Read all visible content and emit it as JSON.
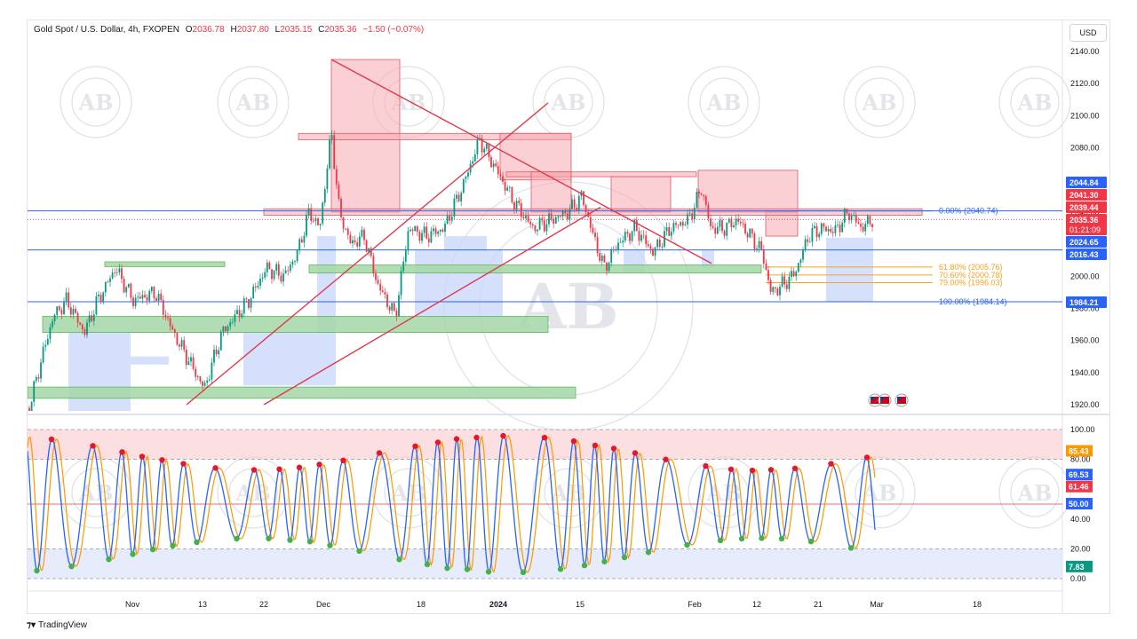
{
  "header": {
    "symbol": "Gold Spot / U.S. Dollar, 4h, FXOPEN",
    "open_label": "O",
    "open": "2036.78",
    "high_label": "H",
    "high": "2037.80",
    "low_label": "L",
    "low": "2035.15",
    "close_label": "C",
    "close": "2035.36",
    "change": "−1.50 (−0.07%)",
    "currency_button": "USD"
  },
  "watermark": {
    "text": "AB"
  },
  "branding": {
    "name": "TradingView"
  },
  "colors": {
    "up": "#089981",
    "down": "#f23645",
    "price_line": "#2962ff",
    "stoch_k": "#2962ff",
    "stoch_d": "#ff9800",
    "supply_zone": "#f7a9b0",
    "demand_zone": "#a5d6a7",
    "box_blue": "#c7d5fb"
  },
  "chart_data": [
    {
      "type": "line",
      "subtype": "candlestick",
      "title": "Gold Spot / U.S. Dollar, 4h, FXOPEN",
      "ylim": [
        1913,
        2147
      ],
      "y_ticks": [
        1920,
        1940,
        1960,
        1980,
        2000,
        2020,
        2040,
        2060,
        2080,
        2100,
        2120,
        2140
      ],
      "x_tick_labels": [
        "Nov",
        "13",
        "22",
        "Dec",
        "18",
        "2024",
        "15",
        "Feb",
        "12",
        "21",
        "Mar",
        "18"
      ],
      "series": [
        {
          "name": "close",
          "x": [
            "Nov",
            "13",
            "22",
            "Dec",
            "18",
            "2024",
            "15",
            "Feb",
            "12",
            "21"
          ],
          "values": [
            1985,
            1950,
            1995,
            2065,
            2035,
            2063,
            2028,
            2042,
            1992,
            2033
          ]
        }
      ],
      "price_labels": [
        {
          "value": "2044.84",
          "color": "#2962ff"
        },
        {
          "value": "2041.30",
          "color": "#f23645"
        },
        {
          "value": "2039.44",
          "color": "#f23645"
        },
        {
          "value": "2035.36",
          "color": "#f23645",
          "countdown": "01:21:09"
        },
        {
          "value": "2024.65",
          "color": "#2962ff"
        },
        {
          "value": "2016.43",
          "color": "#2962ff"
        },
        {
          "value": "1984.21",
          "color": "#2962ff"
        }
      ],
      "fibonacci": [
        {
          "level": "0.00%",
          "price": "2040.74",
          "color": "#2962ff"
        },
        {
          "level": "61.80%",
          "price": "2005.76",
          "color": "#f7a21b"
        },
        {
          "level": "70.60%",
          "price": "2000.78",
          "color": "#f7a21b"
        },
        {
          "level": "79.00%",
          "price": "1996.03",
          "color": "#f7a21b"
        },
        {
          "level": "100.00%",
          "price": "1984.14",
          "color": "#2962ff"
        }
      ],
      "horizontal_lines": [
        2040.7,
        2016.4,
        1984.1
      ]
    },
    {
      "type": "line",
      "subtype": "stochastic",
      "ylim": [
        0,
        100
      ],
      "y_ticks": [
        0,
        20,
        40,
        60,
        80,
        100
      ],
      "levels": [
        20,
        50,
        80
      ],
      "series": [
        {
          "name": "%K",
          "x": [
            "Nov",
            "13",
            "22",
            "Dec",
            "18",
            "2024",
            "15",
            "Feb",
            "12",
            "21"
          ],
          "values": [
            90,
            5,
            92,
            95,
            100,
            30,
            95,
            40,
            2,
            85
          ]
        },
        {
          "name": "%D",
          "x": [
            "Nov",
            "13",
            "22",
            "Dec",
            "18",
            "2024",
            "15",
            "Feb",
            "12",
            "21"
          ],
          "values": [
            85,
            10,
            88,
            90,
            95,
            35,
            90,
            45,
            5,
            70
          ]
        }
      ],
      "value_labels": [
        {
          "value": "85.43",
          "color": "#ff9800"
        },
        {
          "value": "69.53",
          "color": "#2962ff"
        },
        {
          "value": "61.46",
          "color": "#f23645"
        },
        {
          "value": "50.00",
          "color": "#2962ff"
        },
        {
          "value": "7.83",
          "color": "#089981"
        }
      ]
    }
  ]
}
